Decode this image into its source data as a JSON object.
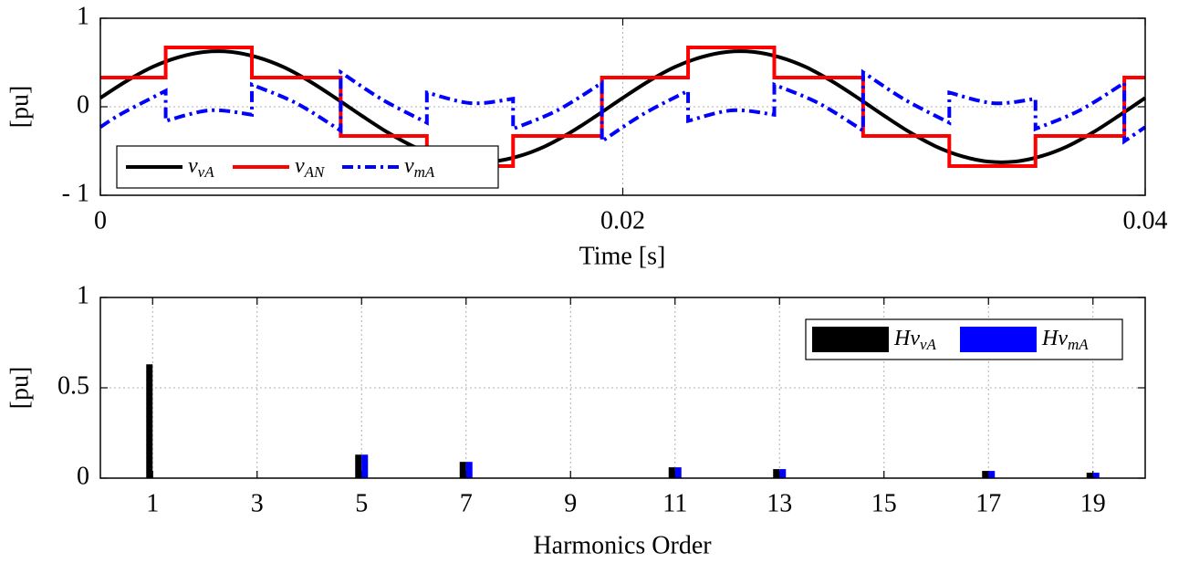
{
  "chart_data": [
    {
      "type": "line",
      "xlabel": "Time [s]",
      "ylabel": "[pu]",
      "xlim": [
        0,
        0.04
      ],
      "xticks": [
        0,
        0.02,
        0.04
      ],
      "ylim": [
        -1,
        1
      ],
      "yticks": [
        {
          "value": -1,
          "label": "- 1"
        },
        0,
        1
      ],
      "grid": true,
      "legend": "lower left",
      "series": [
        {
          "name": {
            "text": "v",
            "subscript": "vA"
          },
          "color": "#000000",
          "style": "solid",
          "smooth": true,
          "x": [
            0,
            0.001,
            0.002,
            0.003,
            0.004,
            0.005,
            0.006,
            0.007,
            0.008,
            0.009,
            0.01,
            0.011,
            0.012,
            0.013,
            0.014,
            0.015,
            0.016,
            0.017,
            0.018,
            0.019,
            0.02,
            0.021,
            0.022,
            0.023,
            0.024,
            0.025,
            0.026,
            0.027,
            0.028,
            0.029,
            0.03,
            0.031,
            0.032,
            0.033,
            0.034,
            0.035,
            0.036,
            0.037,
            0.038,
            0.039,
            0.04
          ],
          "values": [
            0.1,
            0.29,
            0.45,
            0.56,
            0.62,
            0.62,
            0.56,
            0.45,
            0.29,
            0.1,
            -0.1,
            -0.29,
            -0.45,
            -0.56,
            -0.62,
            -0.62,
            -0.56,
            -0.45,
            -0.29,
            -0.1,
            0.1,
            0.29,
            0.45,
            0.56,
            0.62,
            0.62,
            0.56,
            0.45,
            0.29,
            0.1,
            -0.1,
            -0.29,
            -0.45,
            -0.56,
            -0.62,
            -0.62,
            -0.56,
            -0.45,
            -0.29,
            -0.1,
            0.1
          ]
        },
        {
          "name": {
            "text": "v",
            "subscript": "AN"
          },
          "color": "#ff0000",
          "style": "solid",
          "smooth": false,
          "x": [
            0,
            0.0025,
            0.0025,
            0.0058,
            0.0058,
            0.0092,
            0.0092,
            0.0125,
            0.0125,
            0.0158,
            0.0158,
            0.0192,
            0.0192,
            0.0225,
            0.0225,
            0.0258,
            0.0258,
            0.0292,
            0.0292,
            0.0325,
            0.0325,
            0.0358,
            0.0358,
            0.0392,
            0.0392,
            0.04
          ],
          "values": [
            0.33,
            0.33,
            0.67,
            0.67,
            0.33,
            0.33,
            -0.33,
            -0.33,
            -0.67,
            -0.67,
            -0.33,
            -0.33,
            0.33,
            0.33,
            0.67,
            0.67,
            0.33,
            0.33,
            -0.33,
            -0.33,
            -0.67,
            -0.67,
            -0.33,
            -0.33,
            0.33,
            0.33
          ]
        },
        {
          "name": {
            "text": "v",
            "subscript": "mA"
          },
          "color": "#0000ff",
          "style": "dashdot",
          "smooth": true,
          "x": [
            0,
            0.0008,
            0.0025,
            0.0025,
            0.0042,
            0.0058,
            0.0058,
            0.0075,
            0.0092,
            0.0092,
            0.0108,
            0.0125,
            0.0125,
            0.0142,
            0.0158,
            0.0158,
            0.0175,
            0.0192,
            0.0192,
            0.0208,
            0.0225,
            0.0225,
            0.0242,
            0.0258,
            0.0258,
            0.0275,
            0.0292,
            0.0292,
            0.0308,
            0.0325,
            0.0325,
            0.0342,
            0.0358,
            0.0358,
            0.0375,
            0.0392,
            0.0392,
            0.04
          ],
          "values": [
            -0.23,
            -0.08,
            0.18,
            -0.16,
            -0.04,
            -0.09,
            0.25,
            0.04,
            -0.27,
            0.39,
            0.08,
            -0.18,
            0.16,
            0.04,
            0.09,
            -0.25,
            -0.04,
            0.27,
            -0.39,
            -0.08,
            0.18,
            -0.16,
            -0.04,
            -0.09,
            0.25,
            0.04,
            -0.27,
            0.39,
            0.08,
            -0.18,
            0.16,
            0.04,
            0.09,
            -0.25,
            -0.04,
            0.27,
            -0.39,
            -0.23
          ]
        }
      ]
    },
    {
      "type": "bar",
      "xlabel": "Harmonics Order",
      "ylabel": "[pu]",
      "x": [
        1,
        5,
        7,
        11,
        13,
        17,
        19
      ],
      "xlim": [
        0,
        20
      ],
      "xticks": [
        1,
        3,
        5,
        7,
        9,
        11,
        13,
        15,
        17,
        19
      ],
      "ylim": [
        0,
        1
      ],
      "yticks": [
        0,
        0.5,
        1
      ],
      "grid": true,
      "legend": "upper right",
      "series": [
        {
          "name": {
            "text": "Hv",
            "subscript": "vA"
          },
          "color": "#000000",
          "values": [
            0.63,
            0.13,
            0.09,
            0.06,
            0.05,
            0.04,
            0.03
          ]
        },
        {
          "name": {
            "text": "Hv",
            "subscript": "mA"
          },
          "color": "#0000ff",
          "values": [
            0,
            0.13,
            0.09,
            0.06,
            0.05,
            0.04,
            0.03
          ]
        }
      ]
    }
  ]
}
